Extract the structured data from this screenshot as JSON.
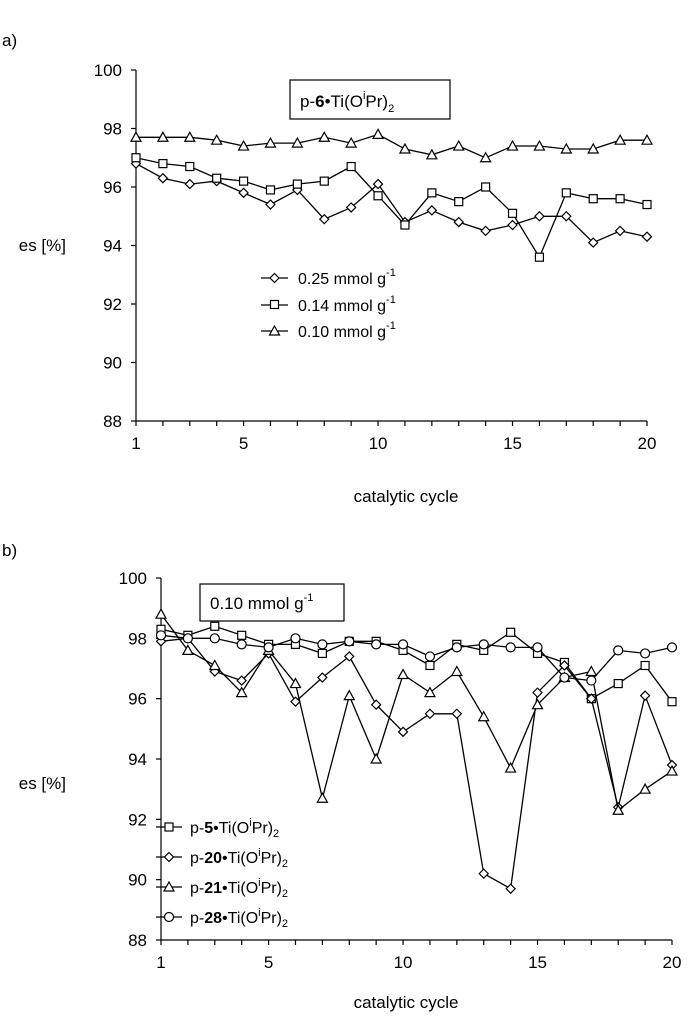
{
  "chart_data": [
    {
      "panel": "a)",
      "type": "line",
      "box_label": {
        "prefix": "p-",
        "bold": "6",
        "rest": "•Ti(O",
        "sup": "i",
        "tail": "Pr)",
        "sub": "2"
      },
      "xlabel": "catalytic cycle",
      "ylabel": "es [%]",
      "xlim": [
        1,
        20
      ],
      "ylim": [
        88,
        100
      ],
      "xticks": [
        1,
        5,
        10,
        15,
        20
      ],
      "yticks": [
        88,
        90,
        92,
        94,
        96,
        98,
        100
      ],
      "legend_placement": "center",
      "series": [
        {
          "name": "0.25 mmol g",
          "sup": "-1",
          "marker": "diamond",
          "x": [
            1,
            2,
            3,
            4,
            5,
            6,
            7,
            8,
            9,
            10,
            11,
            12,
            13,
            14,
            15,
            16,
            17,
            18,
            19,
            20
          ],
          "values": [
            96.8,
            96.3,
            96.1,
            96.2,
            95.8,
            95.4,
            95.9,
            94.9,
            95.3,
            96.1,
            94.8,
            95.2,
            94.8,
            94.5,
            94.7,
            95.0,
            95.0,
            94.1,
            94.5,
            94.3
          ]
        },
        {
          "name": "0.14 mmol g",
          "sup": "-1",
          "marker": "square",
          "x": [
            1,
            2,
            3,
            4,
            5,
            6,
            7,
            8,
            9,
            10,
            11,
            12,
            13,
            14,
            15,
            16,
            17,
            18,
            19,
            20
          ],
          "values": [
            97.0,
            96.8,
            96.7,
            96.3,
            96.2,
            95.9,
            96.1,
            96.2,
            96.7,
            95.7,
            94.7,
            95.8,
            95.5,
            96.0,
            95.1,
            93.6,
            95.8,
            95.6,
            95.6,
            95.4
          ]
        },
        {
          "name": "0.10 mmol g",
          "sup": "-1",
          "marker": "triangle",
          "x": [
            1,
            2,
            3,
            4,
            5,
            6,
            7,
            8,
            9,
            10,
            11,
            12,
            13,
            14,
            15,
            16,
            17,
            18,
            19,
            20
          ],
          "values": [
            97.7,
            97.7,
            97.7,
            97.6,
            97.4,
            97.5,
            97.5,
            97.7,
            97.5,
            97.8,
            97.3,
            97.1,
            97.4,
            97.0,
            97.4,
            97.4,
            97.3,
            97.3,
            97.6,
            97.6
          ]
        }
      ]
    },
    {
      "panel": "b)",
      "type": "line",
      "box_label": {
        "text": "0.10 mmol g",
        "sup": "-1"
      },
      "xlabel": "catalytic cycle",
      "ylabel": "es [%]",
      "xlim": [
        1,
        20
      ],
      "ylim": [
        88,
        100
      ],
      "xticks": [
        1,
        5,
        10,
        15,
        20
      ],
      "yticks": [
        88,
        90,
        92,
        94,
        96,
        98,
        100
      ],
      "legend_placement": "bottom-left",
      "series": [
        {
          "prefix": "p-",
          "bold": "5",
          "rest": "•Ti(O",
          "sup": "i",
          "tail": "Pr)",
          "sub": "2",
          "marker": "square",
          "x": [
            1,
            2,
            3,
            4,
            5,
            6,
            7,
            8,
            9,
            10,
            11,
            12,
            13,
            14,
            15,
            16,
            17,
            18,
            19,
            20
          ],
          "values": [
            98.3,
            98.1,
            98.4,
            98.1,
            97.8,
            97.8,
            97.5,
            97.9,
            97.9,
            97.6,
            97.1,
            97.8,
            97.6,
            98.2,
            97.5,
            97.2,
            96.0,
            96.5,
            97.1,
            95.9
          ]
        },
        {
          "prefix": "p-",
          "bold": "20",
          "rest": "•Ti(O",
          "sup": "i",
          "tail": "Pr)",
          "sub": "2",
          "marker": "diamond",
          "x": [
            1,
            2,
            3,
            4,
            5,
            6,
            7,
            8,
            9,
            10,
            11,
            12,
            13,
            14,
            15,
            16,
            17,
            18,
            19,
            20
          ],
          "values": [
            97.9,
            98.0,
            96.9,
            96.6,
            97.5,
            95.9,
            96.7,
            97.4,
            95.8,
            94.9,
            95.5,
            95.5,
            90.2,
            89.7,
            96.2,
            97.1,
            96.0,
            92.4,
            96.1,
            93.8
          ]
        },
        {
          "prefix": "p-",
          "bold": "21",
          "rest": "•Ti(O",
          "sup": "i",
          "tail": "Pr)",
          "sub": "2",
          "marker": "triangle",
          "x": [
            1,
            2,
            3,
            4,
            5,
            6,
            7,
            8,
            9,
            10,
            11,
            12,
            13,
            14,
            15,
            16,
            17,
            18,
            19,
            20
          ],
          "values": [
            98.8,
            97.6,
            97.1,
            96.2,
            97.6,
            96.5,
            92.7,
            96.1,
            94.0,
            96.8,
            96.2,
            96.9,
            95.4,
            93.7,
            95.8,
            96.7,
            96.9,
            92.3,
            93.0,
            93.6
          ]
        },
        {
          "prefix": "p-",
          "bold": "28",
          "rest": "•Ti(O",
          "sup": "i",
          "tail": "Pr)",
          "sub": "2",
          "marker": "circle",
          "x": [
            1,
            2,
            3,
            4,
            5,
            6,
            7,
            8,
            9,
            10,
            11,
            12,
            13,
            14,
            15,
            16,
            17,
            18,
            19,
            20
          ],
          "values": [
            98.1,
            98.0,
            98.0,
            97.8,
            97.7,
            98.0,
            97.8,
            97.9,
            97.8,
            97.8,
            97.4,
            97.7,
            97.8,
            97.7,
            97.7,
            96.7,
            96.6,
            97.6,
            97.5,
            97.7
          ]
        }
      ]
    }
  ]
}
